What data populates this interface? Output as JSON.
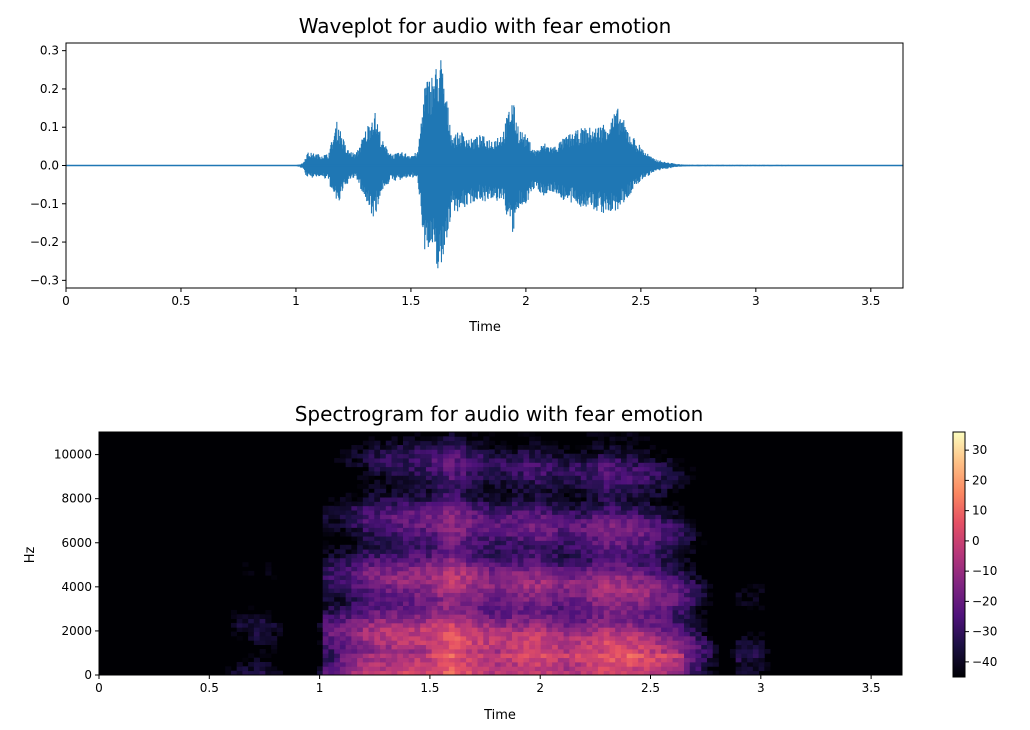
{
  "chart_data": [
    {
      "type": "line",
      "title": "Waveplot for audio with fear emotion",
      "xlabel": "Time",
      "ylabel": "",
      "xlim": [
        0,
        3.64
      ],
      "ylim": [
        -0.32,
        0.32
      ],
      "xticks": [
        0,
        0.5,
        1,
        1.5,
        2,
        2.5,
        3,
        3.5
      ],
      "xtick_labels": [
        "0",
        "0.5",
        "1",
        "1.5",
        "2",
        "2.5",
        "3",
        "3.5"
      ],
      "yticks": [
        0.3,
        0.2,
        0.1,
        0.0,
        -0.1,
        -0.2,
        -0.3
      ],
      "ytick_labels": [
        "0.3",
        "0.2",
        "0.1",
        "0.0",
        "−0.1",
        "−0.2",
        "−0.3"
      ],
      "grid": false,
      "series_color": "#1f77b4",
      "envelope": {
        "t": [
          0,
          1.0,
          1.03,
          1.05,
          1.1,
          1.14,
          1.18,
          1.22,
          1.26,
          1.3,
          1.34,
          1.38,
          1.42,
          1.46,
          1.5,
          1.53,
          1.56,
          1.6,
          1.63,
          1.65,
          1.68,
          1.72,
          1.76,
          1.8,
          1.85,
          1.9,
          1.94,
          1.97,
          2.0,
          2.04,
          2.08,
          2.12,
          2.18,
          2.25,
          2.3,
          2.36,
          2.4,
          2.45,
          2.5,
          2.55,
          2.6,
          2.66,
          2.7,
          3.64
        ],
        "pos": [
          0.001,
          0.001,
          0.006,
          0.035,
          0.03,
          0.03,
          0.12,
          0.045,
          0.03,
          0.09,
          0.15,
          0.06,
          0.03,
          0.035,
          0.03,
          0.035,
          0.22,
          0.25,
          0.29,
          0.2,
          0.08,
          0.09,
          0.07,
          0.08,
          0.07,
          0.09,
          0.18,
          0.1,
          0.08,
          0.04,
          0.06,
          0.05,
          0.08,
          0.1,
          0.1,
          0.12,
          0.15,
          0.09,
          0.05,
          0.02,
          0.01,
          0.004,
          0.002,
          0.001
        ],
        "neg": [
          0.001,
          0.001,
          0.008,
          0.035,
          0.03,
          0.04,
          0.11,
          0.05,
          0.03,
          0.09,
          0.14,
          0.06,
          0.04,
          0.04,
          0.03,
          0.04,
          0.22,
          0.25,
          0.29,
          0.21,
          0.12,
          0.12,
          0.1,
          0.09,
          0.1,
          0.09,
          0.19,
          0.12,
          0.1,
          0.06,
          0.08,
          0.07,
          0.1,
          0.11,
          0.12,
          0.13,
          0.12,
          0.08,
          0.04,
          0.02,
          0.01,
          0.004,
          0.002,
          0.001
        ]
      }
    },
    {
      "type": "heatmap",
      "title": "Spectrogram for audio with fear emotion",
      "xlabel": "Time",
      "ylabel": "Hz",
      "xlim": [
        0,
        3.64
      ],
      "ylim": [
        0,
        11025
      ],
      "xticks": [
        0,
        0.5,
        1,
        1.5,
        2,
        2.5,
        3,
        3.5
      ],
      "xtick_labels": [
        "0",
        "0.5",
        "1",
        "1.5",
        "2",
        "2.5",
        "3",
        "3.5"
      ],
      "yticks": [
        0,
        2000,
        4000,
        6000,
        8000,
        10000
      ],
      "ytick_labels": [
        "0",
        "2000",
        "4000",
        "6000",
        "8000",
        "10000"
      ],
      "colormap": "magma",
      "colorbar": {
        "range": [
          -45,
          36
        ],
        "ticks": [
          30,
          20,
          10,
          0,
          -10,
          -20,
          -30,
          -40
        ],
        "tick_labels": [
          "30",
          "20",
          "10",
          "0",
          "−10",
          "−20",
          "−30",
          "−40"
        ]
      },
      "energy_profile": {
        "t": [
          0,
          0.55,
          0.6,
          0.7,
          0.8,
          0.85,
          0.98,
          1.02,
          1.1,
          1.2,
          1.3,
          1.4,
          1.5,
          1.6,
          1.7,
          1.8,
          1.9,
          2.0,
          2.1,
          2.2,
          2.3,
          2.4,
          2.5,
          2.6,
          2.7,
          2.8,
          2.85,
          2.9,
          3.0,
          3.05,
          3.2,
          3.64
        ],
        "db": [
          -50,
          -50,
          -28,
          -22,
          -25,
          -40,
          -50,
          -8,
          -5,
          4,
          8,
          10,
          12,
          20,
          12,
          8,
          10,
          12,
          6,
          8,
          14,
          12,
          8,
          2,
          -10,
          -30,
          -45,
          -24,
          -24,
          -40,
          -50,
          -50
        ]
      }
    }
  ]
}
